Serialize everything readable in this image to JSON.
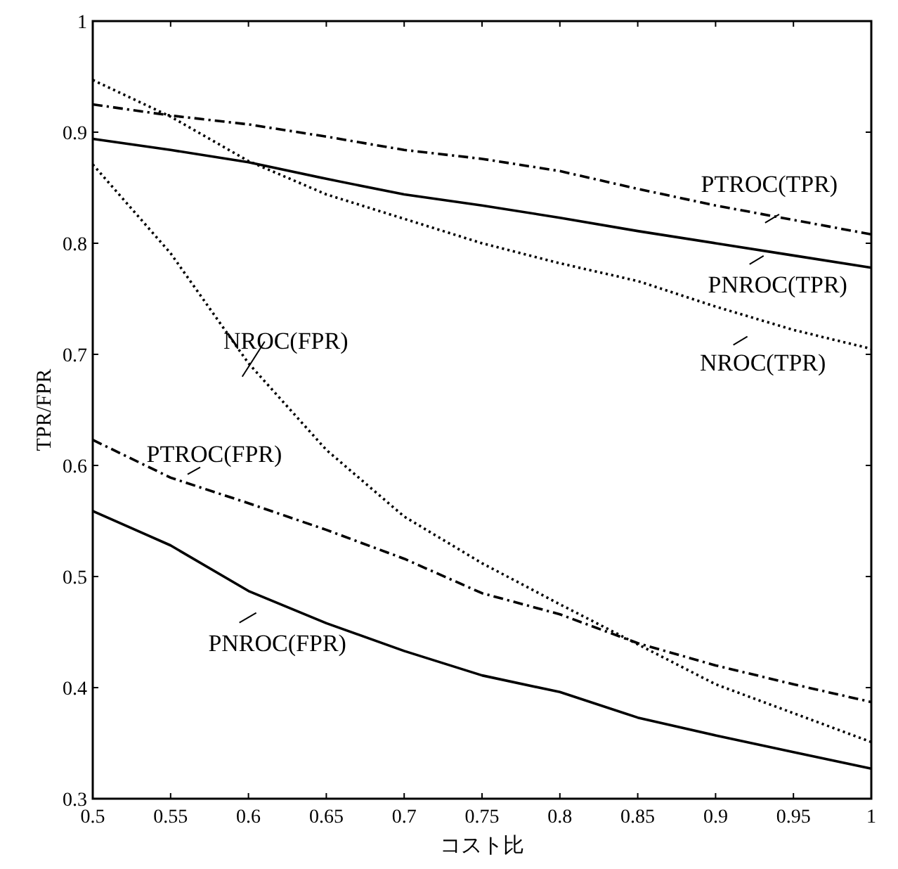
{
  "chart_data": {
    "type": "line",
    "xlabel": "コスト比",
    "ylabel": "TPR/FPR",
    "x": [
      0.5,
      0.55,
      0.6,
      0.65,
      0.7,
      0.75,
      0.8,
      0.85,
      0.9,
      0.95,
      1
    ],
    "xlim": [
      0.5,
      1
    ],
    "ylim": [
      0.3,
      1
    ],
    "xticks": [
      0.5,
      0.55,
      0.6,
      0.65,
      0.7,
      0.75,
      0.8,
      0.85,
      0.9,
      0.95,
      1
    ],
    "yticks": [
      0.3,
      0.4,
      0.5,
      0.6,
      0.7,
      0.8,
      0.9,
      1
    ],
    "series": [
      {
        "color": "#000000",
        "line_style": "dashdot",
        "values": [
          0.925,
          0.915,
          0.907,
          0.896,
          0.884,
          0.876,
          0.865,
          0.849,
          0.834,
          0.821,
          0.808
        ]
      },
      {
        "color": "#000000",
        "line_style": "solid",
        "values": [
          0.894,
          0.884,
          0.873,
          0.858,
          0.844,
          0.834,
          0.823,
          0.811,
          0.8,
          0.789,
          0.778
        ]
      },
      {
        "color": "#000000",
        "line_style": "dotted",
        "values": [
          0.947,
          0.914,
          0.874,
          0.844,
          0.822,
          0.8,
          0.782,
          0.766,
          0.743,
          0.722,
          0.705
        ]
      },
      {
        "color": "#000000",
        "line_style": "dotted",
        "values": [
          0.871,
          0.791,
          0.692,
          0.614,
          0.554,
          0.512,
          0.475,
          0.439,
          0.403,
          0.377,
          0.351
        ]
      },
      {
        "color": "#000000",
        "line_style": "dashdot",
        "values": [
          0.623,
          0.589,
          0.566,
          0.542,
          0.516,
          0.485,
          0.466,
          0.44,
          0.42,
          0.403,
          0.387
        ]
      },
      {
        "color": "#000000",
        "line_style": "solid",
        "values": [
          0.559,
          0.528,
          0.487,
          0.458,
          0.433,
          0.411,
          0.396,
          0.373,
          0.357,
          0.342,
          0.327
        ]
      }
    ],
    "annotations": [
      {
        "text": "PTROC(TPR)",
        "x": 0.93,
        "y": 0.826
      },
      {
        "text": "PNROC(TPR)",
        "x": 0.92,
        "y": 0.79
      },
      {
        "text": "NROC(TPR)",
        "x": 0.915,
        "y": 0.735
      },
      {
        "text": "NROC(FPR)",
        "x": 0.596,
        "y": 0.69
      },
      {
        "text": "PTROC(FPR)",
        "x": 0.56,
        "y": 0.587
      },
      {
        "text": "PNROC(FPR)",
        "x": 0.605,
        "y": 0.485
      }
    ]
  }
}
